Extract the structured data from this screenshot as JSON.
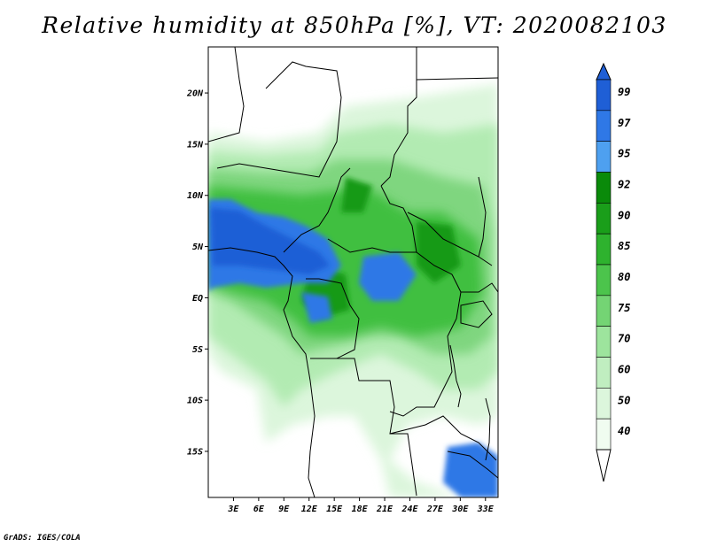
{
  "title": "Relative humidity at 850hPa [%], VT: 2020082103",
  "footer": "GrADS: IGES/COLA",
  "map": {
    "lon_range": [
      0,
      34.5
    ],
    "lat_range": [
      -19.5,
      24.5
    ],
    "lat_ticks": [
      {
        "value": 20,
        "label": "20N"
      },
      {
        "value": 15,
        "label": "15N"
      },
      {
        "value": 10,
        "label": "10N"
      },
      {
        "value": 5,
        "label": "5N"
      },
      {
        "value": 0,
        "label": "EQ"
      },
      {
        "value": -5,
        "label": "5S"
      },
      {
        "value": -10,
        "label": "10S"
      },
      {
        "value": -15,
        "label": "15S"
      }
    ],
    "lon_ticks": [
      {
        "value": 3,
        "label": "3E"
      },
      {
        "value": 6,
        "label": "6E"
      },
      {
        "value": 9,
        "label": "9E"
      },
      {
        "value": 12,
        "label": "12E"
      },
      {
        "value": 15,
        "label": "15E"
      },
      {
        "value": 18,
        "label": "18E"
      },
      {
        "value": 21,
        "label": "21E"
      },
      {
        "value": 24,
        "label": "24E"
      },
      {
        "value": 27,
        "label": "27E"
      },
      {
        "value": 30,
        "label": "30E"
      },
      {
        "value": 33,
        "label": "33E"
      }
    ]
  },
  "colorbar": {
    "levels": [
      "99",
      "97",
      "95",
      "92",
      "90",
      "85",
      "80",
      "75",
      "70",
      "60",
      "50",
      "40"
    ],
    "colors": [
      "#1f5fd6",
      "#2f78e6",
      "#4ea0f0",
      "#0a8a0a",
      "#1a9e1a",
      "#2eb22e",
      "#4cc44c",
      "#74d474",
      "#9de49d",
      "#c0eec0",
      "#dcf6dc",
      "#f0fcf0"
    ],
    "top_arrow_color": "#1f5fd6",
    "bottom_arrow_color": "#ffffff"
  }
}
